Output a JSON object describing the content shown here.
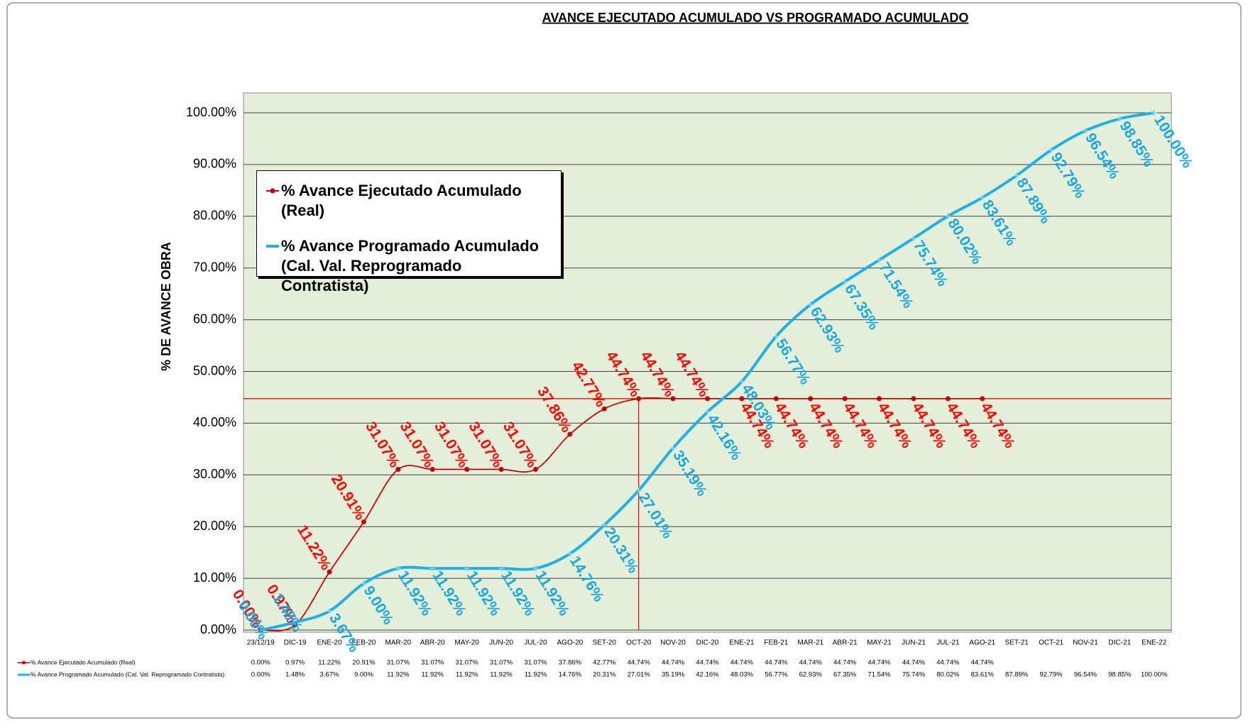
{
  "chart_data": {
    "type": "line",
    "title": "AVANCE EJECUTADO ACUMULADO VS PROGRAMADO ACUMULADO",
    "y_label": "% DE AVANCE OBRA",
    "categories": [
      "23/12/19",
      "DIC-19",
      "ENE-20",
      "FEB-20",
      "MAR-20",
      "ABR-20",
      "MAY-20",
      "JUN-20",
      "JUL-20",
      "AGO-20",
      "SET-20",
      "OCT-20",
      "NOV-20",
      "DIC-20",
      "ENE-21",
      "FEB-21",
      "MAR-21",
      "ABR-21",
      "MAY-21",
      "JUN-21",
      "JUL-21",
      "AGO-21",
      "SET-21",
      "OCT-21",
      "NOV-21",
      "DIC-21",
      "ENE-22"
    ],
    "series": [
      {
        "name": "% Avance Ejecutado Acumulado (Real)",
        "color": "#c00000",
        "label_color": "#ff0000",
        "marker": "circle",
        "values": [
          0.0,
          0.97,
          11.22,
          20.91,
          31.07,
          31.07,
          31.07,
          31.07,
          31.07,
          37.86,
          42.77,
          44.74,
          44.74,
          44.74,
          44.74,
          44.74,
          44.74,
          44.74,
          44.74,
          44.74,
          44.74,
          44.74,
          null,
          null,
          null,
          null,
          null
        ],
        "value_labels": [
          "0.00%",
          "0.97%",
          "11.22%",
          "20.91%",
          "31.07%",
          "31.07%",
          "31.07%",
          "31.07%",
          "31.07%",
          "37.86%",
          "42.77%",
          "44.74%",
          "44.74%",
          "44.74%",
          "44.74%",
          "44.74%",
          "44.74%",
          "44.74%",
          "44.74%",
          "44.74%",
          "44.74%",
          "44.74%",
          null,
          null,
          null,
          null,
          null
        ]
      },
      {
        "name": "% Avance Programado Acumulado (Cal. Val. Reprogramado Contratista)",
        "color": "#1fb0e8",
        "label_color": "#1aa6df",
        "marker": "cross",
        "values": [
          0.0,
          1.48,
          3.67,
          9.0,
          11.92,
          11.92,
          11.92,
          11.92,
          11.92,
          14.76,
          20.31,
          27.01,
          35.19,
          42.16,
          48.03,
          56.77,
          62.93,
          67.35,
          71.54,
          75.74,
          80.02,
          83.61,
          87.89,
          92.79,
          96.54,
          98.85,
          100.0
        ],
        "value_labels": [
          "0.00%",
          "1.48%",
          "3.67%",
          "9.00%",
          "11.92%",
          "11.92%",
          "11.92%",
          "11.92%",
          "11.92%",
          "14.76%",
          "20.31%",
          "27.01%",
          "35.19%",
          "42.16%",
          "48.03%",
          "56.77%",
          "62.93%",
          "67.35%",
          "71.54%",
          "75.74%",
          "80.02%",
          "83.61%",
          "87.89%",
          "92.79%",
          "96.54%",
          "98.85%",
          "100.00%"
        ]
      }
    ],
    "ylim": [
      0,
      100
    ],
    "yticks": [
      {
        "value": 0,
        "label": "0.00%"
      },
      {
        "value": 10,
        "label": "10.00%"
      },
      {
        "value": 20,
        "label": "20.00%"
      },
      {
        "value": 30,
        "label": "30.00%"
      },
      {
        "value": 40,
        "label": "40.00%"
      },
      {
        "value": 50,
        "label": "50.00%"
      },
      {
        "value": 60,
        "label": "60.00%"
      },
      {
        "value": 70,
        "label": "70.00%"
      },
      {
        "value": 80,
        "label": "80.00%"
      },
      {
        "value": 90,
        "label": "90.00%"
      },
      {
        "value": 100,
        "label": "100.00%"
      }
    ],
    "grid": true,
    "plot_background": "#e3efd9",
    "legend": "upper left",
    "data_table": true
  }
}
